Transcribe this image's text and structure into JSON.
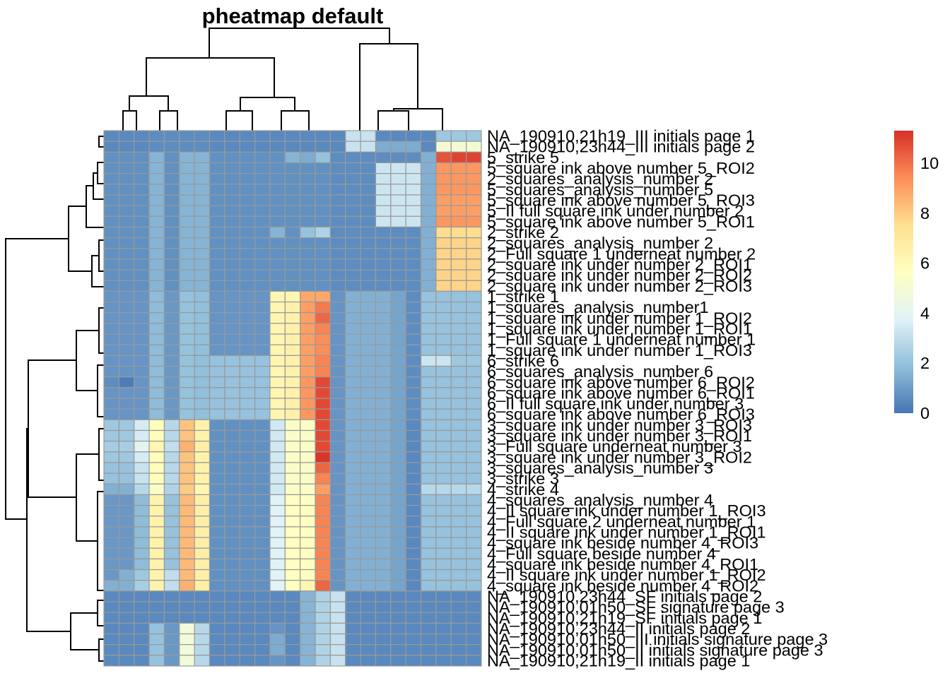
{
  "chart_data": {
    "type": "heatmap",
    "title": "pheatmap default",
    "legend": {
      "placement": "right",
      "ticks": [
        0,
        2,
        4,
        6,
        8,
        10
      ],
      "range": [
        0,
        11.3
      ]
    },
    "colors": [
      "#4575B4",
      "#91BFDB",
      "#E0F3F8",
      "#FFFFBF",
      "#FEE090",
      "#FC8D59",
      "#D73027"
    ],
    "cell_border": "#999999",
    "rows": [
      "NA_190910,21h19_III initials page 1",
      "NA_190910,23h44_III initials page 2",
      "5_strike 5",
      "5_square ink above number 5_ROI2",
      "2_squares_analysis_number 2",
      "5_squares_analysis_number 5",
      "5_square ink above number 5_ROI3",
      "5_II full square ink under number 2",
      "5_square ink above number 5_ROI1",
      "2_strike 2",
      "2_squares_analysis_number 2",
      "2_Full square 1 underneat number 2",
      "2_square ink under number 2_ROI1",
      "2_square ink under number 2_ROI2",
      "2_square ink under number 2_ROI3",
      "1_strike 1",
      "1_squares_analysis_number1",
      "1_square ink under number 1_ROI2",
      "1_square ink under number 1_ROI1",
      "1_Full square 1 underneat number 1",
      "1_square ink under number 1_ROI3",
      "6_strike 6",
      "6_squares_analysis_number 6",
      "6_square ink above number 6_ROI2",
      "6_square ink above number 6_ROI1",
      "6_II full square ink under number 3",
      "6_square ink above number 6_ROI3",
      "3_square ink under number 3_ROI3",
      "3_square ink under number 3_ROI1",
      "3_Full square underneat number 3",
      "3_square ink under number 3_ROI2",
      "3_squares_analysis_number 3",
      "3_strike 3",
      "4_strike 4",
      "4_squares_analysis_number 4",
      "4_II square ink under number 1_ROI3",
      "4_Full square 2 underneat number 1",
      "4_II square ink under number 1_ROI1",
      "4_square ink beside number 4_ROI3",
      "4_Full square beside number 4",
      "4_square ink beside number 4_ROI1",
      "4_II square ink under number 1_ROI2",
      "4_square ink beside number 4_ROI2",
      "NA_190910,23h44_SF initials page 2",
      "NA_190910,01h50_SF signature page 3",
      "NA_190910,21h19_SF initials page 1",
      "NA_190910,23h44_II initials page 2",
      "NA_190910,01h50_III initials signature page 3",
      "NA_190910,01h50_II initials signature page 3",
      "NA_190910,21h19_II initials page 1"
    ],
    "values": [
      [
        0.5,
        0.5,
        0.5,
        0.6,
        0.6,
        0.6,
        0.6,
        0.5,
        0.5,
        0.5,
        0.5,
        0.5,
        0.5,
        0.5,
        0.5,
        0.5,
        3.2,
        3.2,
        0.5,
        0.5,
        0.5,
        0.5,
        2.2,
        2.2,
        2.2
      ],
      [
        0.5,
        0.5,
        0.5,
        0.6,
        0.6,
        0.6,
        0.6,
        0.5,
        0.5,
        0.5,
        0.5,
        0.5,
        0.5,
        0.5,
        0.5,
        0.5,
        3.2,
        3.2,
        1.4,
        1.4,
        1.4,
        0.5,
        5.0,
        5.0,
        5.0
      ],
      [
        0.7,
        0.7,
        0.7,
        1.6,
        0.7,
        1.6,
        1.6,
        0.7,
        0.7,
        0.7,
        0.7,
        0.7,
        1.6,
        1.4,
        2.0,
        0.6,
        0.6,
        0.6,
        0.6,
        0.6,
        0.6,
        1.5,
        10.6,
        10.9,
        10.9
      ],
      [
        0.7,
        0.7,
        0.7,
        1.6,
        0.7,
        1.6,
        1.6,
        0.7,
        0.7,
        0.7,
        0.7,
        0.7,
        0.7,
        0.7,
        0.7,
        0.6,
        0.6,
        0.6,
        3.3,
        3.3,
        3.3,
        1.5,
        9.2,
        9.2,
        9.2
      ],
      [
        0.7,
        0.7,
        0.7,
        1.6,
        0.7,
        1.6,
        1.6,
        0.7,
        0.7,
        0.7,
        0.7,
        0.7,
        0.7,
        0.7,
        0.7,
        0.6,
        0.6,
        0.6,
        3.3,
        3.3,
        3.3,
        1.5,
        9.2,
        9.2,
        9.2
      ],
      [
        0.7,
        0.7,
        0.7,
        1.6,
        0.7,
        1.6,
        1.6,
        0.7,
        0.7,
        0.7,
        0.7,
        0.7,
        0.7,
        0.7,
        0.7,
        0.6,
        0.6,
        0.6,
        3.3,
        3.3,
        3.3,
        1.5,
        9.2,
        9.2,
        9.2
      ],
      [
        0.7,
        0.7,
        0.7,
        1.6,
        0.7,
        1.6,
        1.6,
        0.7,
        0.7,
        0.7,
        0.7,
        0.7,
        0.7,
        0.7,
        0.7,
        0.6,
        0.6,
        0.6,
        3.3,
        3.3,
        3.3,
        1.5,
        9.0,
        9.0,
        9.0
      ],
      [
        0.7,
        0.7,
        0.7,
        1.6,
        0.7,
        1.6,
        1.6,
        0.7,
        0.7,
        0.7,
        0.7,
        0.7,
        0.7,
        0.7,
        0.7,
        0.6,
        0.6,
        0.6,
        3.3,
        3.3,
        3.3,
        1.5,
        9.0,
        9.0,
        9.0
      ],
      [
        0.7,
        0.7,
        0.7,
        1.6,
        0.7,
        1.6,
        1.6,
        0.7,
        0.7,
        0.7,
        0.7,
        0.7,
        0.7,
        0.7,
        0.7,
        0.6,
        0.6,
        0.6,
        3.3,
        3.3,
        3.3,
        1.5,
        9.2,
        9.2,
        9.2
      ],
      [
        0.7,
        0.7,
        0.7,
        1.6,
        0.7,
        1.6,
        1.6,
        0.7,
        0.7,
        0.7,
        0.7,
        1.6,
        0.7,
        2.0,
        2.6,
        0.6,
        0.6,
        0.6,
        0.6,
        0.6,
        0.6,
        1.5,
        7.6,
        7.6,
        7.6
      ],
      [
        0.7,
        0.7,
        0.7,
        1.6,
        0.7,
        1.6,
        1.6,
        0.7,
        0.7,
        0.7,
        0.7,
        0.7,
        0.7,
        0.7,
        0.7,
        0.6,
        0.6,
        0.6,
        0.6,
        0.6,
        0.6,
        1.5,
        7.8,
        7.8,
        7.8
      ],
      [
        0.7,
        0.7,
        0.7,
        1.6,
        0.7,
        1.6,
        1.6,
        0.7,
        0.7,
        0.7,
        0.7,
        0.7,
        0.7,
        0.7,
        0.7,
        0.6,
        0.6,
        0.6,
        0.6,
        0.6,
        0.6,
        1.5,
        7.8,
        7.8,
        7.8
      ],
      [
        0.7,
        0.7,
        0.7,
        1.6,
        0.7,
        1.6,
        1.6,
        0.7,
        0.7,
        0.7,
        0.7,
        0.7,
        0.7,
        0.7,
        0.7,
        0.6,
        0.6,
        0.6,
        0.6,
        0.6,
        0.6,
        1.5,
        7.8,
        7.8,
        7.8
      ],
      [
        0.7,
        0.7,
        0.7,
        1.6,
        0.7,
        1.6,
        1.6,
        0.7,
        0.7,
        0.7,
        0.7,
        0.7,
        0.7,
        0.7,
        0.7,
        0.6,
        0.6,
        0.6,
        0.6,
        0.6,
        0.6,
        1.5,
        7.8,
        7.8,
        7.8
      ],
      [
        0.7,
        0.7,
        0.7,
        1.6,
        0.7,
        1.6,
        1.6,
        0.7,
        0.7,
        0.7,
        0.7,
        0.7,
        0.7,
        0.7,
        0.7,
        0.6,
        0.6,
        0.6,
        0.6,
        0.6,
        0.6,
        1.5,
        7.8,
        7.8,
        7.8
      ],
      [
        0.8,
        0.8,
        0.8,
        1.8,
        0.9,
        2.0,
        1.9,
        0.8,
        0.8,
        0.8,
        0.8,
        6.2,
        6.2,
        8.8,
        8.8,
        0.8,
        1.5,
        1.5,
        1.5,
        1.2,
        0.6,
        2.0,
        2.0,
        2.0,
        2.0
      ],
      [
        0.8,
        0.8,
        0.8,
        1.8,
        0.9,
        2.0,
        1.9,
        0.8,
        0.8,
        0.8,
        0.8,
        6.2,
        6.5,
        9.0,
        9.8,
        0.8,
        1.5,
        1.5,
        1.5,
        1.2,
        0.6,
        2.0,
        2.0,
        2.0,
        2.0
      ],
      [
        0.8,
        0.8,
        0.8,
        1.8,
        0.9,
        2.0,
        1.9,
        0.8,
        0.8,
        0.8,
        0.8,
        6.2,
        6.5,
        9.0,
        10.2,
        0.8,
        1.5,
        1.5,
        1.5,
        1.2,
        0.6,
        2.0,
        2.0,
        2.0,
        2.0
      ],
      [
        0.8,
        0.8,
        0.8,
        1.8,
        0.9,
        2.0,
        1.9,
        0.8,
        0.8,
        0.8,
        0.8,
        6.2,
        6.5,
        9.0,
        9.6,
        0.8,
        1.5,
        1.5,
        1.5,
        1.2,
        0.6,
        2.0,
        2.0,
        2.0,
        2.0
      ],
      [
        0.8,
        0.8,
        0.8,
        1.8,
        0.9,
        2.0,
        1.9,
        0.8,
        0.8,
        0.8,
        0.8,
        6.2,
        6.5,
        9.0,
        9.4,
        0.8,
        1.5,
        1.5,
        1.5,
        1.2,
        0.6,
        2.0,
        2.0,
        2.0,
        2.0
      ],
      [
        0.8,
        0.8,
        0.8,
        1.8,
        0.9,
        2.0,
        1.9,
        0.8,
        0.8,
        0.8,
        0.8,
        6.2,
        6.5,
        9.0,
        9.4,
        0.8,
        1.5,
        1.5,
        1.5,
        1.2,
        0.6,
        2.0,
        2.0,
        2.0,
        2.0
      ],
      [
        0.8,
        0.8,
        0.8,
        1.8,
        0.9,
        2.0,
        1.9,
        2.0,
        2.0,
        2.0,
        2.0,
        6.2,
        6.5,
        9.0,
        9.6,
        0.8,
        1.5,
        1.5,
        1.5,
        1.2,
        0.6,
        3.3,
        3.3,
        2.2,
        2.2
      ],
      [
        0.8,
        0.8,
        0.8,
        1.8,
        0.9,
        2.0,
        1.9,
        2.0,
        2.0,
        2.0,
        2.0,
        6.2,
        6.5,
        9.0,
        9.6,
        0.8,
        1.5,
        1.5,
        1.5,
        1.2,
        0.6,
        2.0,
        2.0,
        2.0,
        2.0
      ],
      [
        0.6,
        0.2,
        0.8,
        1.8,
        0.9,
        2.0,
        1.9,
        2.0,
        2.0,
        2.0,
        2.0,
        6.2,
        6.5,
        9.2,
        10.8,
        0.8,
        1.5,
        1.5,
        1.5,
        1.2,
        0.6,
        2.0,
        2.0,
        2.0,
        2.0
      ],
      [
        0.8,
        0.8,
        0.8,
        1.8,
        0.9,
        2.0,
        1.9,
        2.0,
        2.0,
        2.0,
        2.0,
        6.2,
        6.5,
        9.2,
        10.8,
        0.8,
        1.5,
        1.5,
        1.5,
        1.2,
        0.6,
        2.0,
        2.0,
        2.0,
        2.0
      ],
      [
        0.8,
        0.8,
        0.8,
        1.8,
        0.9,
        2.0,
        1.9,
        2.0,
        2.0,
        2.0,
        2.0,
        6.2,
        6.5,
        9.2,
        10.8,
        0.8,
        1.5,
        1.5,
        1.5,
        1.2,
        0.6,
        2.0,
        2.0,
        2.0,
        2.0
      ],
      [
        0.8,
        0.8,
        0.8,
        1.8,
        0.9,
        2.0,
        1.9,
        2.0,
        2.0,
        2.0,
        2.0,
        6.2,
        6.5,
        9.2,
        10.8,
        0.8,
        1.5,
        1.5,
        1.5,
        1.2,
        0.6,
        2.0,
        2.0,
        2.0,
        2.0
      ],
      [
        2.2,
        2.2,
        3.5,
        5.8,
        2.8,
        8.2,
        6.4,
        0.7,
        0.7,
        0.7,
        0.7,
        3.4,
        5.4,
        5.4,
        10.8,
        0.8,
        1.5,
        1.5,
        1.5,
        1.2,
        0.5,
        2.0,
        2.0,
        2.0,
        2.0
      ],
      [
        2.2,
        2.2,
        3.5,
        5.8,
        2.8,
        8.2,
        6.4,
        0.7,
        0.7,
        0.7,
        0.7,
        3.4,
        5.4,
        5.4,
        10.8,
        0.8,
        1.5,
        1.5,
        1.5,
        1.2,
        0.5,
        2.0,
        2.0,
        2.0,
        2.0
      ],
      [
        2.4,
        2.4,
        4.0,
        6.2,
        3.0,
        8.6,
        6.6,
        0.7,
        0.7,
        0.7,
        0.7,
        3.4,
        5.4,
        5.4,
        10.8,
        0.8,
        1.5,
        1.5,
        1.5,
        1.2,
        0.5,
        2.0,
        2.0,
        2.0,
        2.0
      ],
      [
        2.2,
        2.2,
        3.5,
        5.8,
        2.8,
        8.2,
        6.4,
        0.7,
        0.7,
        0.7,
        0.7,
        3.4,
        5.4,
        5.4,
        11.2,
        0.8,
        1.5,
        1.5,
        1.5,
        1.2,
        0.5,
        2.0,
        2.0,
        2.0,
        2.0
      ],
      [
        2.0,
        2.0,
        3.2,
        5.8,
        2.8,
        8.2,
        6.4,
        0.7,
        0.7,
        0.7,
        0.7,
        3.4,
        5.4,
        5.4,
        10.2,
        0.8,
        1.5,
        1.5,
        1.5,
        1.2,
        0.5,
        2.0,
        2.0,
        2.0,
        2.0
      ],
      [
        2.0,
        2.0,
        3.2,
        5.8,
        2.8,
        8.2,
        6.4,
        0.7,
        0.7,
        0.7,
        0.7,
        3.4,
        5.4,
        5.4,
        9.6,
        0.8,
        1.5,
        1.5,
        1.5,
        1.2,
        0.5,
        2.0,
        2.0,
        2.0,
        2.0
      ],
      [
        1.5,
        1.5,
        2.8,
        5.4,
        2.6,
        8.0,
        6.2,
        0.7,
        0.7,
        0.7,
        0.7,
        3.4,
        5.4,
        5.4,
        9.0,
        0.8,
        1.5,
        1.5,
        1.5,
        1.2,
        0.5,
        2.8,
        2.8,
        2.8,
        2.8
      ],
      [
        0.9,
        0.9,
        1.8,
        6.4,
        2.0,
        8.4,
        6.6,
        0.7,
        0.7,
        0.7,
        0.7,
        3.8,
        5.6,
        5.6,
        9.6,
        0.8,
        1.5,
        1.5,
        1.5,
        1.2,
        0.5,
        2.0,
        2.0,
        2.0,
        2.0
      ],
      [
        0.9,
        0.9,
        1.8,
        6.4,
        2.0,
        8.4,
        6.6,
        0.7,
        0.7,
        0.7,
        0.7,
        3.8,
        5.6,
        5.6,
        9.6,
        0.8,
        1.5,
        1.5,
        1.5,
        1.2,
        0.5,
        2.0,
        2.0,
        2.0,
        2.0
      ],
      [
        0.9,
        0.9,
        1.8,
        6.4,
        2.0,
        8.4,
        6.6,
        0.7,
        0.7,
        0.7,
        0.7,
        3.8,
        5.6,
        5.6,
        9.6,
        0.8,
        1.5,
        1.5,
        1.5,
        1.2,
        0.5,
        2.0,
        2.0,
        2.0,
        2.0
      ],
      [
        0.9,
        0.9,
        1.8,
        6.4,
        2.0,
        8.4,
        6.6,
        0.7,
        0.7,
        0.7,
        0.7,
        3.8,
        5.6,
        5.6,
        9.6,
        0.8,
        1.5,
        1.5,
        1.5,
        1.2,
        0.5,
        2.0,
        2.0,
        2.0,
        2.0
      ],
      [
        0.9,
        0.9,
        1.8,
        6.4,
        2.0,
        8.4,
        6.6,
        0.7,
        0.7,
        0.7,
        0.7,
        3.8,
        5.6,
        5.6,
        9.6,
        0.8,
        1.5,
        1.5,
        1.5,
        1.2,
        0.5,
        2.0,
        2.0,
        2.0,
        2.0
      ],
      [
        0.9,
        0.9,
        1.8,
        6.4,
        2.0,
        8.4,
        6.6,
        0.7,
        0.7,
        0.7,
        0.7,
        3.8,
        5.6,
        5.6,
        9.6,
        0.8,
        1.5,
        1.5,
        1.5,
        1.2,
        0.5,
        2.0,
        2.0,
        2.0,
        2.0
      ],
      [
        0.9,
        0.9,
        1.8,
        6.4,
        2.0,
        8.4,
        6.6,
        0.7,
        0.7,
        0.7,
        0.7,
        3.8,
        5.6,
        5.6,
        9.6,
        0.8,
        1.5,
        1.5,
        1.5,
        1.2,
        0.5,
        2.0,
        2.0,
        2.0,
        2.0
      ],
      [
        0.9,
        1.5,
        2.2,
        6.4,
        3.0,
        8.4,
        6.6,
        0.7,
        0.7,
        0.7,
        0.7,
        3.8,
        5.6,
        5.6,
        9.6,
        0.8,
        1.5,
        1.5,
        1.5,
        1.2,
        0.5,
        2.0,
        2.0,
        2.0,
        2.0
      ],
      [
        1.5,
        1.5,
        2.4,
        6.4,
        3.0,
        8.6,
        6.6,
        0.7,
        0.7,
        0.7,
        0.7,
        3.8,
        5.6,
        6.2,
        10.2,
        0.8,
        1.5,
        1.5,
        1.5,
        1.2,
        0.5,
        2.0,
        2.0,
        2.0,
        2.0
      ],
      [
        0.5,
        0.5,
        0.5,
        0.5,
        0.5,
        0.5,
        0.5,
        0.5,
        0.5,
        0.5,
        0.5,
        0.5,
        0.5,
        1.6,
        2.6,
        3.2,
        0.5,
        0.5,
        0.5,
        0.5,
        0.5,
        0.5,
        0.5,
        0.5,
        0.5
      ],
      [
        0.5,
        0.5,
        0.5,
        0.5,
        0.5,
        0.5,
        0.5,
        0.5,
        0.5,
        0.5,
        0.5,
        0.5,
        0.5,
        1.6,
        2.6,
        3.2,
        0.5,
        0.5,
        0.5,
        0.5,
        0.5,
        0.5,
        0.5,
        0.5,
        0.5
      ],
      [
        0.5,
        0.5,
        0.5,
        0.5,
        0.5,
        0.5,
        0.5,
        0.5,
        0.5,
        0.5,
        0.5,
        0.5,
        0.5,
        1.6,
        2.6,
        3.2,
        0.5,
        0.5,
        0.5,
        0.5,
        0.5,
        0.5,
        0.5,
        0.5,
        0.5
      ],
      [
        0.5,
        0.5,
        0.5,
        2.0,
        0.9,
        4.8,
        2.8,
        0.5,
        0.5,
        0.5,
        0.5,
        0.8,
        0.5,
        1.6,
        2.6,
        3.2,
        0.5,
        0.5,
        0.5,
        0.5,
        0.5,
        0.5,
        0.5,
        0.5,
        0.5
      ],
      [
        0.5,
        0.5,
        0.5,
        2.0,
        0.9,
        4.8,
        2.8,
        0.5,
        0.5,
        0.5,
        0.5,
        1.4,
        0.5,
        1.6,
        2.6,
        3.2,
        0.5,
        0.5,
        0.5,
        0.5,
        0.5,
        0.5,
        0.5,
        0.5,
        0.5
      ],
      [
        0.5,
        0.5,
        0.5,
        2.0,
        0.9,
        4.8,
        2.8,
        0.5,
        0.5,
        0.5,
        0.5,
        1.4,
        0.5,
        1.6,
        2.6,
        3.2,
        0.5,
        0.5,
        0.5,
        0.5,
        0.5,
        0.5,
        0.5,
        0.5,
        0.5
      ],
      [
        0.5,
        0.5,
        0.5,
        2.0,
        0.9,
        4.8,
        2.8,
        0.5,
        0.5,
        0.5,
        0.5,
        0.8,
        0.5,
        1.6,
        2.6,
        3.2,
        0.5,
        0.5,
        0.5,
        0.5,
        0.5,
        0.5,
        0.5,
        0.5,
        0.5
      ]
    ]
  }
}
